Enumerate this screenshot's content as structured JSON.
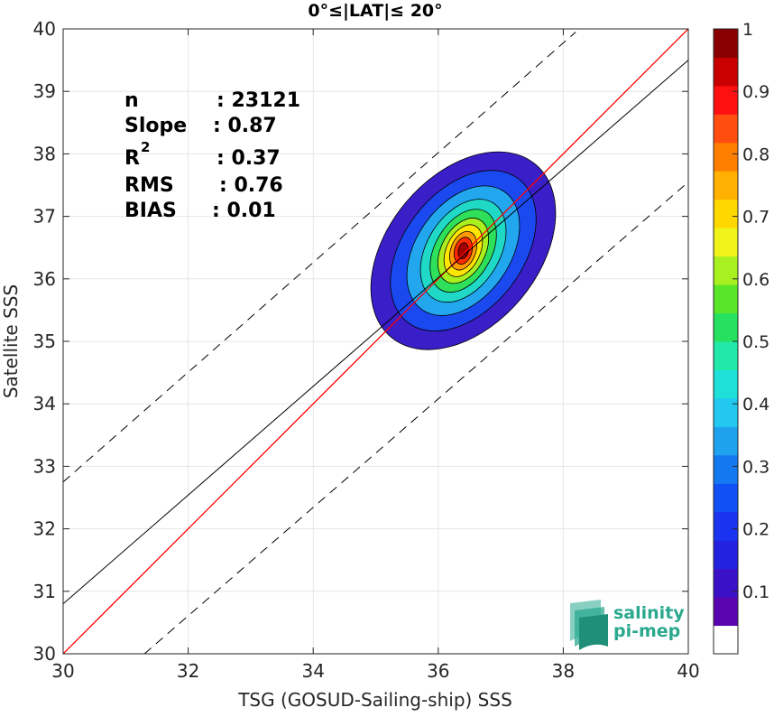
{
  "chart_data": {
    "type": "contour-density-scatter",
    "title": "0°≤|LAT|≤ 20°",
    "xlabel": "TSG (GOSUD-Sailing-ship) SSS",
    "ylabel": "Satellite SSS",
    "xlim": [
      30,
      40
    ],
    "ylim": [
      30,
      40
    ],
    "xticks": [
      30,
      32,
      34,
      36,
      38,
      40
    ],
    "yticks": [
      30,
      31,
      32,
      33,
      34,
      35,
      36,
      37,
      38,
      39,
      40
    ],
    "grid": true,
    "stats": [
      {
        "key": "n",
        "value": ": 23121"
      },
      {
        "key": "Slope",
        "value": ": 0.87"
      },
      {
        "key": "R",
        "sup": "2",
        "value": ": 0.37"
      },
      {
        "key": "RMS",
        "value": ": 0.76"
      },
      {
        "key": "BIAS",
        "value": ": 0.01"
      }
    ],
    "lines": {
      "identity": {
        "slope": 1,
        "intercept": 0,
        "color": "#ff0000"
      },
      "regression": {
        "slope": 0.87,
        "x_at_30": 30,
        "y_at_30": 30.8,
        "color": "#000000"
      },
      "upper_bound": {
        "x1": 30,
        "y1": 32.75,
        "x2": 38.2,
        "y2": 39.95,
        "style": "dashed"
      },
      "lower_bound": {
        "x1": 31.3,
        "y1": 30,
        "x2": 40,
        "y2": 37.55,
        "style": "dashed"
      }
    },
    "contours": {
      "center": [
        36.4,
        36.45
      ],
      "levels": [
        {
          "level": 0.05,
          "color": "#3a1fc8",
          "rx": 1.2,
          "ry": 1.8,
          "rot": 40
        },
        {
          "level": 0.15,
          "color": "#1a49f0",
          "rx": 0.95,
          "ry": 1.45,
          "rot": 38
        },
        {
          "level": 0.25,
          "color": "#22a7ef",
          "rx": 0.75,
          "ry": 1.15,
          "rot": 35
        },
        {
          "level": 0.35,
          "color": "#1fd9c6",
          "rx": 0.58,
          "ry": 0.9,
          "rot": 32
        },
        {
          "level": 0.45,
          "color": "#2ee05a",
          "rx": 0.45,
          "ry": 0.72,
          "rot": 30
        },
        {
          "level": 0.55,
          "color": "#aaf01e",
          "rx": 0.35,
          "ry": 0.56,
          "rot": 28
        },
        {
          "level": 0.65,
          "color": "#ffe600",
          "rx": 0.27,
          "ry": 0.44,
          "rot": 25
        },
        {
          "level": 0.75,
          "color": "#ff9a00",
          "rx": 0.2,
          "ry": 0.32,
          "rot": 20
        },
        {
          "level": 0.85,
          "color": "#ff2a00",
          "rx": 0.14,
          "ry": 0.22,
          "rot": 15
        },
        {
          "level": 0.95,
          "color": "#a00000",
          "rx": 0.08,
          "ry": 0.13,
          "rot": 10
        }
      ]
    },
    "colorbar": {
      "tick_labels": [
        "0.1",
        "0.2",
        "0.3",
        "0.4",
        "0.5",
        "0.6",
        "0.7",
        "0.8",
        "0.9",
        "1"
      ],
      "tick_values": [
        0.1,
        0.2,
        0.3,
        0.4,
        0.5,
        0.6,
        0.7,
        0.8,
        0.9,
        1.0
      ],
      "colors": [
        "#ffffff",
        "#5a06b0",
        "#3b11c8",
        "#2222e0",
        "#1a33f0",
        "#1150f5",
        "#1478f0",
        "#1ea2ee",
        "#22c8f0",
        "#1fe0d8",
        "#22e8a8",
        "#26e060",
        "#5ae628",
        "#a8f020",
        "#f0f41a",
        "#ffd800",
        "#ffb000",
        "#ff7e00",
        "#ff4e10",
        "#ff1010",
        "#c80000",
        "#8a0000"
      ]
    }
  },
  "logo": {
    "line1": "salinity",
    "line2": "pi-mep",
    "color": "#2aa98f"
  }
}
